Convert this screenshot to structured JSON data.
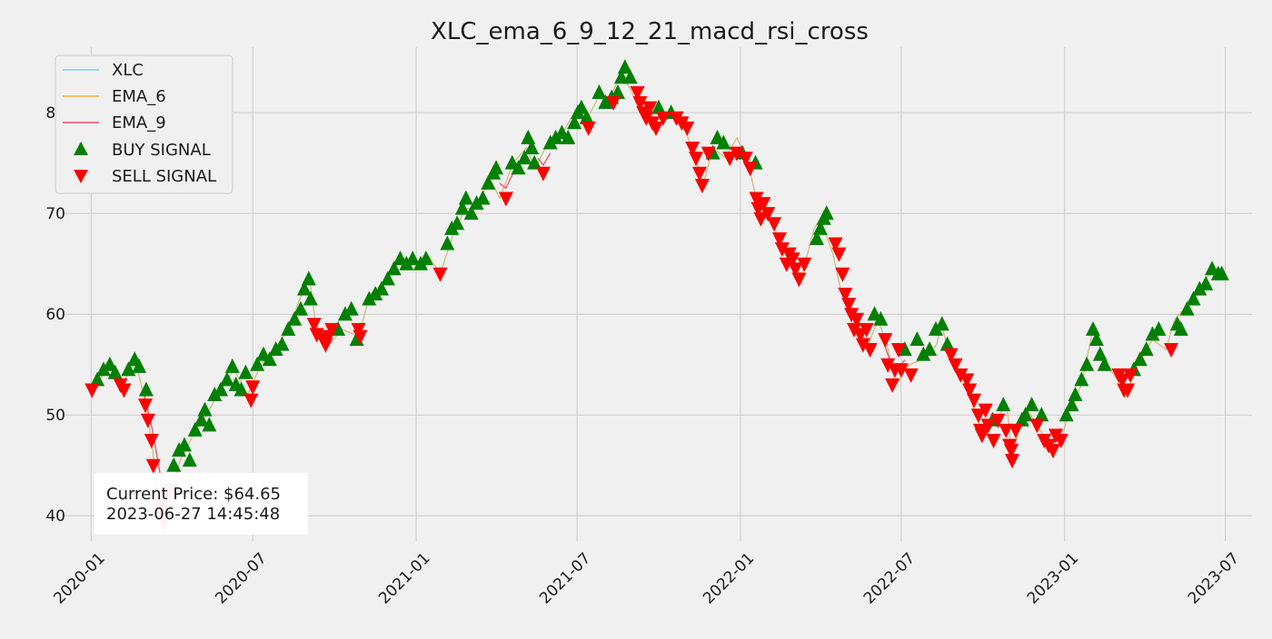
{
  "chart_data": {
    "type": "line",
    "title": "XLC_ema_6_9_12_21_macd_rsi_cross",
    "xlabel": "",
    "ylabel": "",
    "xlim": [
      "2019-12-01",
      "2023-07-31"
    ],
    "ylim": [
      37.5,
      86.5
    ],
    "x_ticks": [
      "2020-01",
      "2020-07",
      "2021-01",
      "2021-07",
      "2022-01",
      "2022-07",
      "2023-01",
      "2023-07"
    ],
    "y_ticks": [
      40,
      50,
      60,
      70,
      80
    ],
    "grid": true,
    "legend_position": "top-left",
    "legend": [
      "XLC",
      "EMA_6",
      "EMA_9",
      "BUY SIGNAL",
      "SELL SIGNAL"
    ],
    "colors": {
      "xlc": "#8ecae6",
      "ema6": "#f2b33d",
      "ema9": "#e8506a",
      "buy": "#008000",
      "sell": "#ff0000",
      "background": "#f0f0f0",
      "grid": "#cbcbcb"
    },
    "price_points": [
      [
        "2020-01-02",
        52.5
      ],
      [
        "2020-01-15",
        54.0
      ],
      [
        "2020-01-22",
        55.0
      ],
      [
        "2020-02-05",
        53.0
      ],
      [
        "2020-02-20",
        55.5
      ],
      [
        "2020-03-01",
        51.5
      ],
      [
        "2020-03-09",
        47.5
      ],
      [
        "2020-03-15",
        43.0
      ],
      [
        "2020-03-20",
        40.0
      ],
      [
        "2020-03-23",
        39.2
      ],
      [
        "2020-04-01",
        42.0
      ],
      [
        "2020-04-10",
        45.5
      ],
      [
        "2020-04-25",
        48.0
      ],
      [
        "2020-05-10",
        50.0
      ],
      [
        "2020-05-25",
        52.5
      ],
      [
        "2020-06-10",
        54.5
      ],
      [
        "2020-06-25",
        52.0
      ],
      [
        "2020-07-10",
        55.0
      ],
      [
        "2020-07-25",
        56.5
      ],
      [
        "2020-08-10",
        58.5
      ],
      [
        "2020-08-25",
        62.0
      ],
      [
        "2020-09-03",
        63.5
      ],
      [
        "2020-09-10",
        59.0
      ],
      [
        "2020-09-25",
        57.0
      ],
      [
        "2020-10-10",
        58.5
      ],
      [
        "2020-10-28",
        57.8
      ],
      [
        "2020-11-10",
        62.0
      ],
      [
        "2020-11-30",
        63.5
      ],
      [
        "2020-12-15",
        65.5
      ],
      [
        "2021-01-05",
        65.0
      ],
      [
        "2021-01-15",
        65.8
      ],
      [
        "2021-01-28",
        64.0
      ],
      [
        "2021-02-10",
        67.5
      ],
      [
        "2021-02-25",
        70.5
      ],
      [
        "2021-03-10",
        70.5
      ],
      [
        "2021-03-25",
        73.5
      ],
      [
        "2021-04-05",
        71.5
      ],
      [
        "2021-04-20",
        75.0
      ],
      [
        "2021-05-05",
        76.5
      ],
      [
        "2021-05-15",
        74.5
      ],
      [
        "2021-06-01",
        77.5
      ],
      [
        "2021-06-15",
        78.0
      ],
      [
        "2021-07-01",
        80.5
      ],
      [
        "2021-07-10",
        79.0
      ],
      [
        "2021-07-25",
        81.5
      ],
      [
        "2021-08-05",
        81.0
      ],
      [
        "2021-08-20",
        84.0
      ],
      [
        "2021-09-01",
        82.0
      ],
      [
        "2021-09-10",
        80.0
      ],
      [
        "2021-09-25",
        79.0
      ],
      [
        "2021-10-10",
        80.0
      ],
      [
        "2021-10-25",
        79.5
      ],
      [
        "2021-11-10",
        76.0
      ],
      [
        "2021-11-20",
        72.8
      ],
      [
        "2021-12-01",
        76.5
      ],
      [
        "2021-12-15",
        75.5
      ],
      [
        "2021-12-28",
        77.5
      ],
      [
        "2022-01-10",
        75.0
      ],
      [
        "2022-01-20",
        71.0
      ],
      [
        "2022-02-01",
        70.0
      ],
      [
        "2022-02-15",
        67.0
      ],
      [
        "2022-02-28",
        64.5
      ],
      [
        "2022-03-10",
        63.5
      ],
      [
        "2022-03-25",
        68.5
      ],
      [
        "2022-04-01",
        69.5
      ],
      [
        "2022-04-15",
        66.0
      ],
      [
        "2022-04-25",
        62.0
      ],
      [
        "2022-05-10",
        59.0
      ],
      [
        "2022-05-25",
        57.0
      ],
      [
        "2022-06-05",
        59.5
      ],
      [
        "2022-06-15",
        57.0
      ],
      [
        "2022-06-25",
        53.0
      ],
      [
        "2022-07-10",
        55.0
      ],
      [
        "2022-07-25",
        55.5
      ],
      [
        "2022-08-10",
        57.0
      ],
      [
        "2022-08-15",
        59.0
      ],
      [
        "2022-08-25",
        56.0
      ],
      [
        "2022-09-10",
        53.5
      ],
      [
        "2022-09-25",
        49.5
      ],
      [
        "2022-10-05",
        48.0
      ],
      [
        "2022-10-15",
        49.5
      ],
      [
        "2022-10-28",
        51.0
      ],
      [
        "2022-11-03",
        45.5
      ],
      [
        "2022-11-10",
        48.5
      ],
      [
        "2022-11-20",
        50.5
      ],
      [
        "2022-12-01",
        49.0
      ],
      [
        "2022-12-15",
        47.0
      ],
      [
        "2022-12-28",
        47.5
      ],
      [
        "2023-01-05",
        50.0
      ],
      [
        "2023-01-20",
        53.0
      ],
      [
        "2023-02-02",
        58.5
      ],
      [
        "2023-02-15",
        55.5
      ],
      [
        "2023-03-01",
        53.5
      ],
      [
        "2023-03-13",
        52.5
      ],
      [
        "2023-03-25",
        55.0
      ],
      [
        "2023-04-10",
        57.5
      ],
      [
        "2023-04-25",
        56.5
      ],
      [
        "2023-05-05",
        59.5
      ],
      [
        "2023-05-20",
        61.0
      ],
      [
        "2023-06-05",
        62.5
      ],
      [
        "2023-06-15",
        64.5
      ],
      [
        "2023-06-27",
        64.65
      ]
    ],
    "buy_signals": [
      [
        "2020-01-08",
        53.5
      ],
      [
        "2020-01-15",
        54.5
      ],
      [
        "2020-01-22",
        55.0
      ],
      [
        "2020-01-28",
        54.2
      ],
      [
        "2020-02-12",
        54.5
      ],
      [
        "2020-02-19",
        55.5
      ],
      [
        "2020-02-24",
        54.8
      ],
      [
        "2020-03-03",
        52.5
      ],
      [
        "2020-04-03",
        45.0
      ],
      [
        "2020-04-09",
        46.5
      ],
      [
        "2020-04-15",
        47.0
      ],
      [
        "2020-04-21",
        45.5
      ],
      [
        "2020-04-27",
        48.5
      ],
      [
        "2020-05-04",
        49.5
      ],
      [
        "2020-05-08",
        50.5
      ],
      [
        "2020-05-13",
        49.0
      ],
      [
        "2020-05-19",
        52.0
      ],
      [
        "2020-05-26",
        52.5
      ],
      [
        "2020-06-02",
        53.5
      ],
      [
        "2020-06-08",
        54.8
      ],
      [
        "2020-06-12",
        53.0
      ],
      [
        "2020-06-18",
        52.5
      ],
      [
        "2020-06-23",
        54.2
      ],
      [
        "2020-07-06",
        55.0
      ],
      [
        "2020-07-13",
        56.0
      ],
      [
        "2020-07-20",
        55.5
      ],
      [
        "2020-07-27",
        56.5
      ],
      [
        "2020-08-03",
        57.0
      ],
      [
        "2020-08-10",
        58.5
      ],
      [
        "2020-08-17",
        59.5
      ],
      [
        "2020-08-24",
        60.5
      ],
      [
        "2020-08-28",
        62.5
      ],
      [
        "2020-09-02",
        63.5
      ],
      [
        "2020-09-04",
        61.5
      ],
      [
        "2020-10-05",
        58.5
      ],
      [
        "2020-10-13",
        60.0
      ],
      [
        "2020-10-20",
        60.5
      ],
      [
        "2020-10-26",
        57.5
      ],
      [
        "2020-11-09",
        61.5
      ],
      [
        "2020-11-16",
        62.0
      ],
      [
        "2020-11-23",
        62.5
      ],
      [
        "2020-11-30",
        63.5
      ],
      [
        "2020-12-07",
        64.5
      ],
      [
        "2020-12-14",
        65.5
      ],
      [
        "2020-12-21",
        65.0
      ],
      [
        "2020-12-28",
        65.5
      ],
      [
        "2021-01-06",
        65.0
      ],
      [
        "2021-01-12",
        65.5
      ],
      [
        "2021-02-05",
        67.0
      ],
      [
        "2021-02-10",
        68.5
      ],
      [
        "2021-02-16",
        69.0
      ],
      [
        "2021-02-22",
        70.5
      ],
      [
        "2021-02-26",
        71.5
      ],
      [
        "2021-03-04",
        70.0
      ],
      [
        "2021-03-10",
        71.0
      ],
      [
        "2021-03-17",
        71.5
      ],
      [
        "2021-03-23",
        73.0
      ],
      [
        "2021-03-29",
        74.0
      ],
      [
        "2021-04-01",
        74.5
      ],
      [
        "2021-04-19",
        75.0
      ],
      [
        "2021-04-26",
        74.5
      ],
      [
        "2021-05-03",
        75.5
      ],
      [
        "2021-05-07",
        77.5
      ],
      [
        "2021-05-11",
        76.5
      ],
      [
        "2021-05-14",
        75.0
      ],
      [
        "2021-06-01",
        77.0
      ],
      [
        "2021-06-07",
        77.5
      ],
      [
        "2021-06-14",
        78.0
      ],
      [
        "2021-06-21",
        77.5
      ],
      [
        "2021-06-28",
        79.0
      ],
      [
        "2021-07-02",
        80.0
      ],
      [
        "2021-07-06",
        80.5
      ],
      [
        "2021-07-12",
        79.5
      ],
      [
        "2021-07-26",
        82.0
      ],
      [
        "2021-08-02",
        81.0
      ],
      [
        "2021-08-09",
        81.5
      ],
      [
        "2021-08-16",
        82.0
      ],
      [
        "2021-08-20",
        83.5
      ],
      [
        "2021-08-24",
        84.5
      ],
      [
        "2021-08-30",
        83.5
      ],
      [
        "2021-10-01",
        80.5
      ],
      [
        "2021-10-15",
        80.0
      ],
      [
        "2021-12-01",
        76.0
      ],
      [
        "2021-12-06",
        77.5
      ],
      [
        "2021-12-13",
        77.0
      ],
      [
        "2022-01-03",
        76.0
      ],
      [
        "2022-01-18",
        75.0
      ],
      [
        "2022-03-28",
        67.5
      ],
      [
        "2022-04-01",
        68.5
      ],
      [
        "2022-04-05",
        69.5
      ],
      [
        "2022-04-08",
        70.0
      ],
      [
        "2022-06-01",
        60.0
      ],
      [
        "2022-06-08",
        59.5
      ],
      [
        "2022-07-05",
        56.5
      ],
      [
        "2022-07-19",
        57.5
      ],
      [
        "2022-07-26",
        56.0
      ],
      [
        "2022-08-02",
        56.5
      ],
      [
        "2022-08-09",
        58.5
      ],
      [
        "2022-08-16",
        59.0
      ],
      [
        "2022-08-22",
        57.0
      ],
      [
        "2022-10-12",
        49.5
      ],
      [
        "2022-10-24",
        51.0
      ],
      [
        "2022-11-14",
        49.5
      ],
      [
        "2022-11-18",
        50.0
      ],
      [
        "2022-11-25",
        51.0
      ],
      [
        "2022-12-06",
        50.0
      ],
      [
        "2023-01-03",
        50.0
      ],
      [
        "2023-01-09",
        51.0
      ],
      [
        "2023-01-13",
        52.0
      ],
      [
        "2023-01-20",
        53.5
      ],
      [
        "2023-01-26",
        55.0
      ],
      [
        "2023-02-02",
        58.5
      ],
      [
        "2023-02-06",
        57.5
      ],
      [
        "2023-02-10",
        56.0
      ],
      [
        "2023-02-15",
        55.0
      ],
      [
        "2023-03-20",
        54.5
      ],
      [
        "2023-03-27",
        55.5
      ],
      [
        "2023-04-03",
        56.5
      ],
      [
        "2023-04-10",
        58.0
      ],
      [
        "2023-04-17",
        58.5
      ],
      [
        "2023-05-08",
        59.0
      ],
      [
        "2023-05-12",
        58.5
      ],
      [
        "2023-05-19",
        60.5
      ],
      [
        "2023-05-26",
        61.5
      ],
      [
        "2023-06-02",
        62.5
      ],
      [
        "2023-06-09",
        63.0
      ],
      [
        "2023-06-16",
        64.5
      ],
      [
        "2023-06-23",
        64.0
      ],
      [
        "2023-06-27",
        64.0
      ]
    ],
    "sell_signals": [
      [
        "2020-01-02",
        52.5
      ],
      [
        "2020-02-03",
        53.0
      ],
      [
        "2020-02-07",
        52.5
      ],
      [
        "2020-03-02",
        51.0
      ],
      [
        "2020-03-05",
        49.5
      ],
      [
        "2020-03-09",
        47.5
      ],
      [
        "2020-03-11",
        45.0
      ],
      [
        "2020-03-16",
        42.0
      ],
      [
        "2020-03-18",
        41.0
      ],
      [
        "2020-03-20",
        40.0
      ],
      [
        "2020-03-23",
        39.3
      ],
      [
        "2020-03-25",
        41.5
      ],
      [
        "2020-03-27",
        42.5
      ],
      [
        "2020-06-29",
        51.5
      ],
      [
        "2020-07-01",
        52.8
      ],
      [
        "2020-09-08",
        59.0
      ],
      [
        "2020-09-11",
        58.0
      ],
      [
        "2020-09-18",
        57.5
      ],
      [
        "2020-09-21",
        57.0
      ],
      [
        "2020-09-24",
        57.8
      ],
      [
        "2020-09-28",
        58.5
      ],
      [
        "2020-10-28",
        58.5
      ],
      [
        "2020-10-30",
        57.8
      ],
      [
        "2021-01-28",
        64.0
      ],
      [
        "2021-04-12",
        71.5
      ],
      [
        "2021-05-24",
        74.0
      ],
      [
        "2021-07-14",
        78.5
      ],
      [
        "2021-08-11",
        81.0
      ],
      [
        "2021-09-07",
        82.0
      ],
      [
        "2021-09-10",
        81.0
      ],
      [
        "2021-09-14",
        80.0
      ],
      [
        "2021-09-17",
        79.5
      ],
      [
        "2021-09-21",
        80.5
      ],
      [
        "2021-09-24",
        79.0
      ],
      [
        "2021-09-28",
        78.5
      ],
      [
        "2021-10-06",
        79.5
      ],
      [
        "2021-10-21",
        79.5
      ],
      [
        "2021-10-27",
        79.0
      ],
      [
        "2021-11-02",
        78.5
      ],
      [
        "2021-11-08",
        76.5
      ],
      [
        "2021-11-12",
        75.5
      ],
      [
        "2021-11-16",
        74.0
      ],
      [
        "2021-11-19",
        72.8
      ],
      [
        "2021-11-26",
        76.0
      ],
      [
        "2021-12-20",
        75.5
      ],
      [
        "2021-12-28",
        76.0
      ],
      [
        "2022-01-07",
        75.5
      ],
      [
        "2022-01-12",
        74.5
      ],
      [
        "2022-01-19",
        71.5
      ],
      [
        "2022-01-21",
        70.5
      ],
      [
        "2022-01-24",
        69.5
      ],
      [
        "2022-01-27",
        71.0
      ],
      [
        "2022-02-01",
        70.0
      ],
      [
        "2022-02-08",
        69.0
      ],
      [
        "2022-02-14",
        67.5
      ],
      [
        "2022-02-17",
        66.5
      ],
      [
        "2022-02-22",
        65.0
      ],
      [
        "2022-02-25",
        66.0
      ],
      [
        "2022-03-01",
        65.5
      ],
      [
        "2022-03-04",
        64.5
      ],
      [
        "2022-03-08",
        63.5
      ],
      [
        "2022-03-14",
        65.0
      ],
      [
        "2022-04-18",
        67.0
      ],
      [
        "2022-04-22",
        66.0
      ],
      [
        "2022-04-26",
        64.0
      ],
      [
        "2022-04-29",
        62.0
      ],
      [
        "2022-05-03",
        61.0
      ],
      [
        "2022-05-06",
        60.0
      ],
      [
        "2022-05-09",
        58.5
      ],
      [
        "2022-05-12",
        59.5
      ],
      [
        "2022-05-16",
        58.0
      ],
      [
        "2022-05-19",
        57.0
      ],
      [
        "2022-05-23",
        58.5
      ],
      [
        "2022-05-27",
        56.5
      ],
      [
        "2022-06-13",
        57.5
      ],
      [
        "2022-06-16",
        55.0
      ],
      [
        "2022-06-21",
        53.0
      ],
      [
        "2022-06-24",
        54.5
      ],
      [
        "2022-06-28",
        56.5
      ],
      [
        "2022-07-01",
        54.5
      ],
      [
        "2022-07-12",
        54.0
      ],
      [
        "2022-08-26",
        56.0
      ],
      [
        "2022-08-31",
        55.0
      ],
      [
        "2022-09-06",
        54.0
      ],
      [
        "2022-09-13",
        53.5
      ],
      [
        "2022-09-16",
        52.5
      ],
      [
        "2022-09-21",
        51.5
      ],
      [
        "2022-09-26",
        50.0
      ],
      [
        "2022-09-28",
        48.5
      ],
      [
        "2022-09-30",
        48.0
      ],
      [
        "2022-10-04",
        50.5
      ],
      [
        "2022-10-07",
        49.0
      ],
      [
        "2022-10-13",
        47.5
      ],
      [
        "2022-10-18",
        49.5
      ],
      [
        "2022-10-27",
        48.5
      ],
      [
        "2022-10-31",
        47.0
      ],
      [
        "2022-11-02",
        46.5
      ],
      [
        "2022-11-03",
        45.5
      ],
      [
        "2022-11-07",
        48.5
      ],
      [
        "2022-12-01",
        49.0
      ],
      [
        "2022-12-09",
        47.5
      ],
      [
        "2022-12-14",
        47.0
      ],
      [
        "2022-12-19",
        46.5
      ],
      [
        "2022-12-22",
        48.0
      ],
      [
        "2022-12-28",
        47.5
      ],
      [
        "2023-03-03",
        54.0
      ],
      [
        "2023-03-07",
        53.5
      ],
      [
        "2023-03-09",
        52.5
      ],
      [
        "2023-03-13",
        52.5
      ],
      [
        "2023-03-16",
        54.0
      ],
      [
        "2023-05-01",
        56.5
      ]
    ],
    "ema_segments": [
      [
        [
          "2020-03-01",
          52.0
        ],
        [
          "2020-03-10",
          48.5
        ],
        [
          "2020-03-20",
          43.5
        ],
        [
          "2020-03-25",
          41.5
        ]
      ],
      [
        [
          "2021-04-05",
          73.0
        ],
        [
          "2021-04-12",
          72.5
        ],
        [
          "2021-04-20",
          74.0
        ]
      ],
      [
        [
          "2021-05-18",
          75.5
        ],
        [
          "2021-05-24",
          74.8
        ],
        [
          "2021-06-01",
          76.0
        ]
      ],
      [
        [
          "2022-06-10",
          57.5
        ],
        [
          "2022-06-20",
          55.0
        ],
        [
          "2022-06-28",
          54.5
        ],
        [
          "2022-07-05",
          55.5
        ]
      ]
    ]
  },
  "annotation": {
    "line1": "Current Price: $64.65",
    "line2": "2023-06-27 14:45:48"
  }
}
